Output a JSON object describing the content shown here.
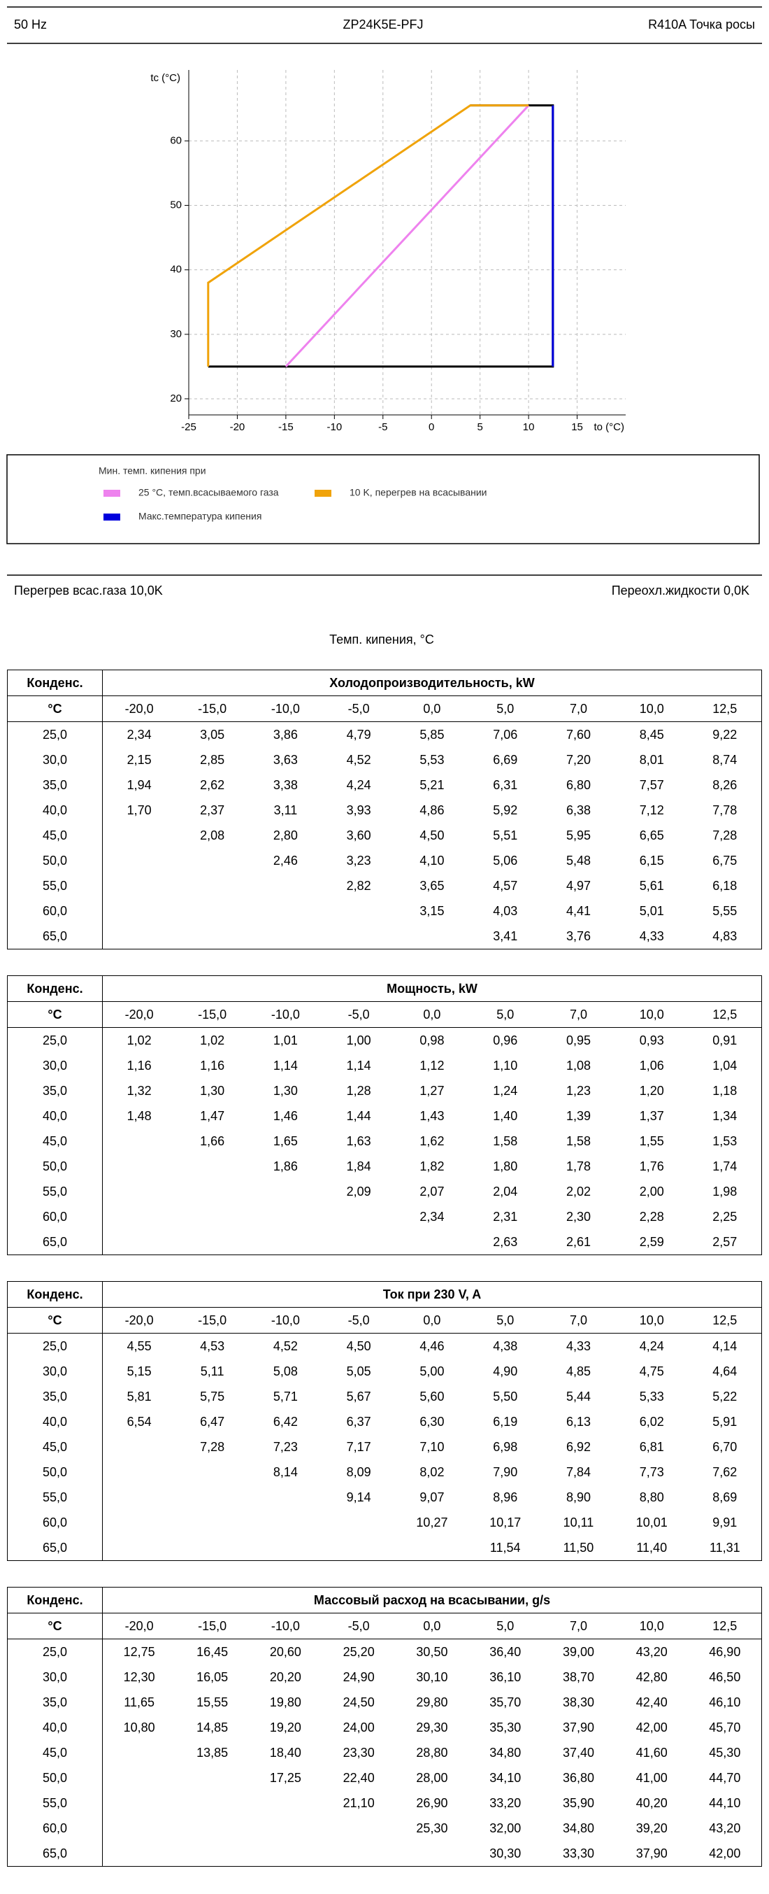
{
  "header": {
    "left": "50 Hz",
    "center": "ZP24K5E-PFJ",
    "right": "R410A Точка росы"
  },
  "chart_data": {
    "type": "line",
    "y_label": "tc (°C)",
    "x_label": "to (°C)",
    "xlim": [
      -25,
      20
    ],
    "xticks": [
      -25,
      -20,
      -15,
      -10,
      -5,
      0,
      5,
      10,
      15
    ],
    "ylim": [
      17.5,
      71
    ],
    "yticks": [
      20,
      30,
      40,
      50,
      60
    ],
    "grid": true,
    "series": [
      {
        "color": "#000000",
        "x": [
          4,
          12.5,
          12.5,
          -23
        ],
        "values": [
          65.5,
          65.5,
          25,
          25
        ]
      },
      {
        "name": "25 °C, темп.всасываемого газа",
        "color": "#ee82ee",
        "x": [
          -15,
          10
        ],
        "values": [
          25,
          65.5
        ]
      },
      {
        "name": "10 K, перегрев на всасывании",
        "color": "#f0a30a",
        "x": [
          -23,
          -23,
          4,
          10
        ],
        "values": [
          25,
          38,
          65.5,
          65.5
        ]
      },
      {
        "name": "Макс.температура кипения",
        "color": "#0000dd",
        "x": [
          12.5,
          12.5
        ],
        "values": [
          25,
          65.5
        ]
      }
    ],
    "legend_title": "Мин. темп. кипения при"
  },
  "params": {
    "left": "Перегрев всас.газа 10,0K",
    "right": "Переохл.жидкости 0,0K",
    "caption": "Темп. кипения, °C"
  },
  "tables": [
    {
      "row_header": [
        "Конденс.",
        "°C"
      ],
      "title": "Холодопроизводительность, kW",
      "columns": [
        "-20,0",
        "-15,0",
        "-10,0",
        "-5,0",
        "0,0",
        "5,0",
        "7,0",
        "10,0",
        "12,5"
      ],
      "rows": [
        {
          "label": "25,0",
          "values": [
            "2,34",
            "3,05",
            "3,86",
            "4,79",
            "5,85",
            "7,06",
            "7,60",
            "8,45",
            "9,22"
          ]
        },
        {
          "label": "30,0",
          "values": [
            "2,15",
            "2,85",
            "3,63",
            "4,52",
            "5,53",
            "6,69",
            "7,20",
            "8,01",
            "8,74"
          ]
        },
        {
          "label": "35,0",
          "values": [
            "1,94",
            "2,62",
            "3,38",
            "4,24",
            "5,21",
            "6,31",
            "6,80",
            "7,57",
            "8,26"
          ]
        },
        {
          "label": "40,0",
          "values": [
            "1,70",
            "2,37",
            "3,11",
            "3,93",
            "4,86",
            "5,92",
            "6,38",
            "7,12",
            "7,78"
          ]
        },
        {
          "label": "45,0",
          "values": [
            null,
            "2,08",
            "2,80",
            "3,60",
            "4,50",
            "5,51",
            "5,95",
            "6,65",
            "7,28"
          ]
        },
        {
          "label": "50,0",
          "values": [
            null,
            null,
            "2,46",
            "3,23",
            "4,10",
            "5,06",
            "5,48",
            "6,15",
            "6,75"
          ]
        },
        {
          "label": "55,0",
          "values": [
            null,
            null,
            null,
            "2,82",
            "3,65",
            "4,57",
            "4,97",
            "5,61",
            "6,18"
          ]
        },
        {
          "label": "60,0",
          "values": [
            null,
            null,
            null,
            null,
            "3,15",
            "4,03",
            "4,41",
            "5,01",
            "5,55"
          ]
        },
        {
          "label": "65,0",
          "values": [
            null,
            null,
            null,
            null,
            null,
            "3,41",
            "3,76",
            "4,33",
            "4,83"
          ]
        }
      ]
    },
    {
      "row_header": [
        "Конденс.",
        "°C"
      ],
      "title": "Мощность, kW",
      "columns": [
        "-20,0",
        "-15,0",
        "-10,0",
        "-5,0",
        "0,0",
        "5,0",
        "7,0",
        "10,0",
        "12,5"
      ],
      "rows": [
        {
          "label": "25,0",
          "values": [
            "1,02",
            "1,02",
            "1,01",
            "1,00",
            "0,98",
            "0,96",
            "0,95",
            "0,93",
            "0,91"
          ]
        },
        {
          "label": "30,0",
          "values": [
            "1,16",
            "1,16",
            "1,14",
            "1,14",
            "1,12",
            "1,10",
            "1,08",
            "1,06",
            "1,04"
          ]
        },
        {
          "label": "35,0",
          "values": [
            "1,32",
            "1,30",
            "1,30",
            "1,28",
            "1,27",
            "1,24",
            "1,23",
            "1,20",
            "1,18"
          ]
        },
        {
          "label": "40,0",
          "values": [
            "1,48",
            "1,47",
            "1,46",
            "1,44",
            "1,43",
            "1,40",
            "1,39",
            "1,37",
            "1,34"
          ]
        },
        {
          "label": "45,0",
          "values": [
            null,
            "1,66",
            "1,65",
            "1,63",
            "1,62",
            "1,58",
            "1,58",
            "1,55",
            "1,53"
          ]
        },
        {
          "label": "50,0",
          "values": [
            null,
            null,
            "1,86",
            "1,84",
            "1,82",
            "1,80",
            "1,78",
            "1,76",
            "1,74"
          ]
        },
        {
          "label": "55,0",
          "values": [
            null,
            null,
            null,
            "2,09",
            "2,07",
            "2,04",
            "2,02",
            "2,00",
            "1,98"
          ]
        },
        {
          "label": "60,0",
          "values": [
            null,
            null,
            null,
            null,
            "2,34",
            "2,31",
            "2,30",
            "2,28",
            "2,25"
          ]
        },
        {
          "label": "65,0",
          "values": [
            null,
            null,
            null,
            null,
            null,
            "2,63",
            "2,61",
            "2,59",
            "2,57"
          ]
        }
      ]
    },
    {
      "row_header": [
        "Конденс.",
        "°C"
      ],
      "title": "Ток при 230 V, A",
      "columns": [
        "-20,0",
        "-15,0",
        "-10,0",
        "-5,0",
        "0,0",
        "5,0",
        "7,0",
        "10,0",
        "12,5"
      ],
      "rows": [
        {
          "label": "25,0",
          "values": [
            "4,55",
            "4,53",
            "4,52",
            "4,50",
            "4,46",
            "4,38",
            "4,33",
            "4,24",
            "4,14"
          ]
        },
        {
          "label": "30,0",
          "values": [
            "5,15",
            "5,11",
            "5,08",
            "5,05",
            "5,00",
            "4,90",
            "4,85",
            "4,75",
            "4,64"
          ]
        },
        {
          "label": "35,0",
          "values": [
            "5,81",
            "5,75",
            "5,71",
            "5,67",
            "5,60",
            "5,50",
            "5,44",
            "5,33",
            "5,22"
          ]
        },
        {
          "label": "40,0",
          "values": [
            "6,54",
            "6,47",
            "6,42",
            "6,37",
            "6,30",
            "6,19",
            "6,13",
            "6,02",
            "5,91"
          ]
        },
        {
          "label": "45,0",
          "values": [
            null,
            "7,28",
            "7,23",
            "7,17",
            "7,10",
            "6,98",
            "6,92",
            "6,81",
            "6,70"
          ]
        },
        {
          "label": "50,0",
          "values": [
            null,
            null,
            "8,14",
            "8,09",
            "8,02",
            "7,90",
            "7,84",
            "7,73",
            "7,62"
          ]
        },
        {
          "label": "55,0",
          "values": [
            null,
            null,
            null,
            "9,14",
            "9,07",
            "8,96",
            "8,90",
            "8,80",
            "8,69"
          ]
        },
        {
          "label": "60,0",
          "values": [
            null,
            null,
            null,
            null,
            "10,27",
            "10,17",
            "10,11",
            "10,01",
            "9,91"
          ]
        },
        {
          "label": "65,0",
          "values": [
            null,
            null,
            null,
            null,
            null,
            "11,54",
            "11,50",
            "11,40",
            "11,31"
          ]
        }
      ]
    },
    {
      "row_header": [
        "Конденс.",
        "°C"
      ],
      "title": "Массовый расход на всасывании, g/s",
      "columns": [
        "-20,0",
        "-15,0",
        "-10,0",
        "-5,0",
        "0,0",
        "5,0",
        "7,0",
        "10,0",
        "12,5"
      ],
      "rows": [
        {
          "label": "25,0",
          "values": [
            "12,75",
            "16,45",
            "20,60",
            "25,20",
            "30,50",
            "36,40",
            "39,00",
            "43,20",
            "46,90"
          ]
        },
        {
          "label": "30,0",
          "values": [
            "12,30",
            "16,05",
            "20,20",
            "24,90",
            "30,10",
            "36,10",
            "38,70",
            "42,80",
            "46,50"
          ]
        },
        {
          "label": "35,0",
          "values": [
            "11,65",
            "15,55",
            "19,80",
            "24,50",
            "29,80",
            "35,70",
            "38,30",
            "42,40",
            "46,10"
          ]
        },
        {
          "label": "40,0",
          "values": [
            "10,80",
            "14,85",
            "19,20",
            "24,00",
            "29,30",
            "35,30",
            "37,90",
            "42,00",
            "45,70"
          ]
        },
        {
          "label": "45,0",
          "values": [
            null,
            "13,85",
            "18,40",
            "23,30",
            "28,80",
            "34,80",
            "37,40",
            "41,60",
            "45,30"
          ]
        },
        {
          "label": "50,0",
          "values": [
            null,
            null,
            "17,25",
            "22,40",
            "28,00",
            "34,10",
            "36,80",
            "41,00",
            "44,70"
          ]
        },
        {
          "label": "55,0",
          "values": [
            null,
            null,
            null,
            "21,10",
            "26,90",
            "33,20",
            "35,90",
            "40,20",
            "44,10"
          ]
        },
        {
          "label": "60,0",
          "values": [
            null,
            null,
            null,
            null,
            "25,30",
            "32,00",
            "34,80",
            "39,20",
            "43,20"
          ]
        },
        {
          "label": "65,0",
          "values": [
            null,
            null,
            null,
            null,
            null,
            "30,30",
            "33,30",
            "37,90",
            "42,00"
          ]
        }
      ]
    }
  ]
}
